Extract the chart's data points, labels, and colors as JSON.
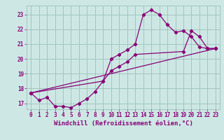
{
  "xlabel": "Windchill (Refroidissement éolien,°C)",
  "ylabel": "",
  "bg_color": "#cde8e4",
  "grid_color": "#9dbfba",
  "line_color": "#880077",
  "xlim": [
    -0.5,
    23.5
  ],
  "ylim": [
    16.6,
    23.6
  ],
  "xticks": [
    0,
    1,
    2,
    3,
    4,
    5,
    6,
    7,
    8,
    9,
    10,
    11,
    12,
    13,
    14,
    15,
    16,
    17,
    18,
    19,
    20,
    21,
    22,
    23
  ],
  "yticks": [
    17,
    18,
    19,
    20,
    21,
    22,
    23
  ],
  "line1_x": [
    0,
    1,
    2,
    3,
    4,
    5,
    6,
    7,
    8,
    9,
    10,
    11,
    12,
    13,
    14,
    15,
    16,
    17,
    18,
    19,
    20,
    21,
    22,
    23
  ],
  "line1_y": [
    17.7,
    17.2,
    17.4,
    16.8,
    16.8,
    16.7,
    17.0,
    17.3,
    17.8,
    18.5,
    20.0,
    20.3,
    20.6,
    21.0,
    23.0,
    23.3,
    23.0,
    22.3,
    21.8,
    21.9,
    21.5,
    20.8,
    20.7,
    20.7
  ],
  "line2_x": [
    0,
    9,
    10,
    11,
    12,
    13,
    19,
    20,
    21,
    22,
    23
  ],
  "line2_y": [
    17.7,
    18.5,
    19.2,
    19.5,
    19.8,
    20.3,
    20.5,
    21.9,
    21.5,
    20.7,
    20.7
  ],
  "line3_x": [
    0,
    23
  ],
  "line3_y": [
    17.7,
    20.7
  ],
  "marker": "D",
  "markersize": 2.2,
  "linewidth": 0.9,
  "label_fontsize": 6.5,
  "tick_fontsize": 5.5
}
